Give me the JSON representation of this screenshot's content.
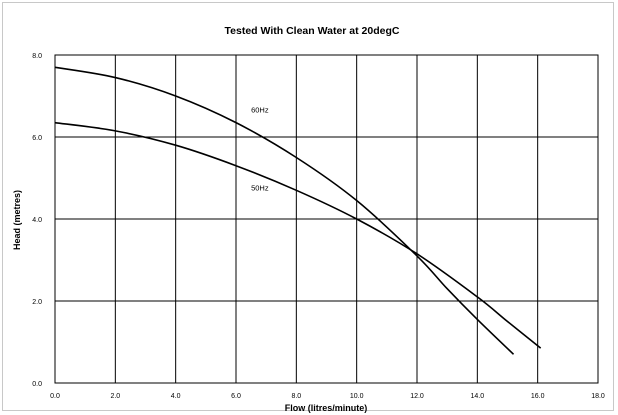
{
  "chart_data": {
    "type": "line",
    "title": "Tested With Clean Water at 20degC",
    "xlabel": "Flow (litres/minute)",
    "ylabel": "Head (metres)",
    "xlim": [
      0,
      18
    ],
    "ylim": [
      0,
      8
    ],
    "grid": true,
    "x_ticks": [
      "0.0",
      "2.0",
      "4.0",
      "6.0",
      "8.0",
      "10.0",
      "12.0",
      "14.0",
      "16.0",
      "18.0"
    ],
    "y_ticks": [
      "0.0",
      "2.0",
      "4.0",
      "6.0",
      "8.0"
    ],
    "series": [
      {
        "name": "60Hz",
        "x": [
          0,
          2,
          4,
          6,
          8,
          10,
          12,
          13,
          14,
          15.2
        ],
        "y": [
          7.7,
          7.45,
          7.0,
          6.35,
          5.5,
          4.45,
          3.1,
          2.3,
          1.55,
          0.7
        ]
      },
      {
        "name": "50Hz",
        "x": [
          0,
          2,
          4,
          6,
          8,
          10,
          12,
          14,
          15,
          16.1
        ],
        "y": [
          6.35,
          6.15,
          5.8,
          5.3,
          4.7,
          4.0,
          3.15,
          2.1,
          1.5,
          0.85
        ]
      }
    ]
  }
}
